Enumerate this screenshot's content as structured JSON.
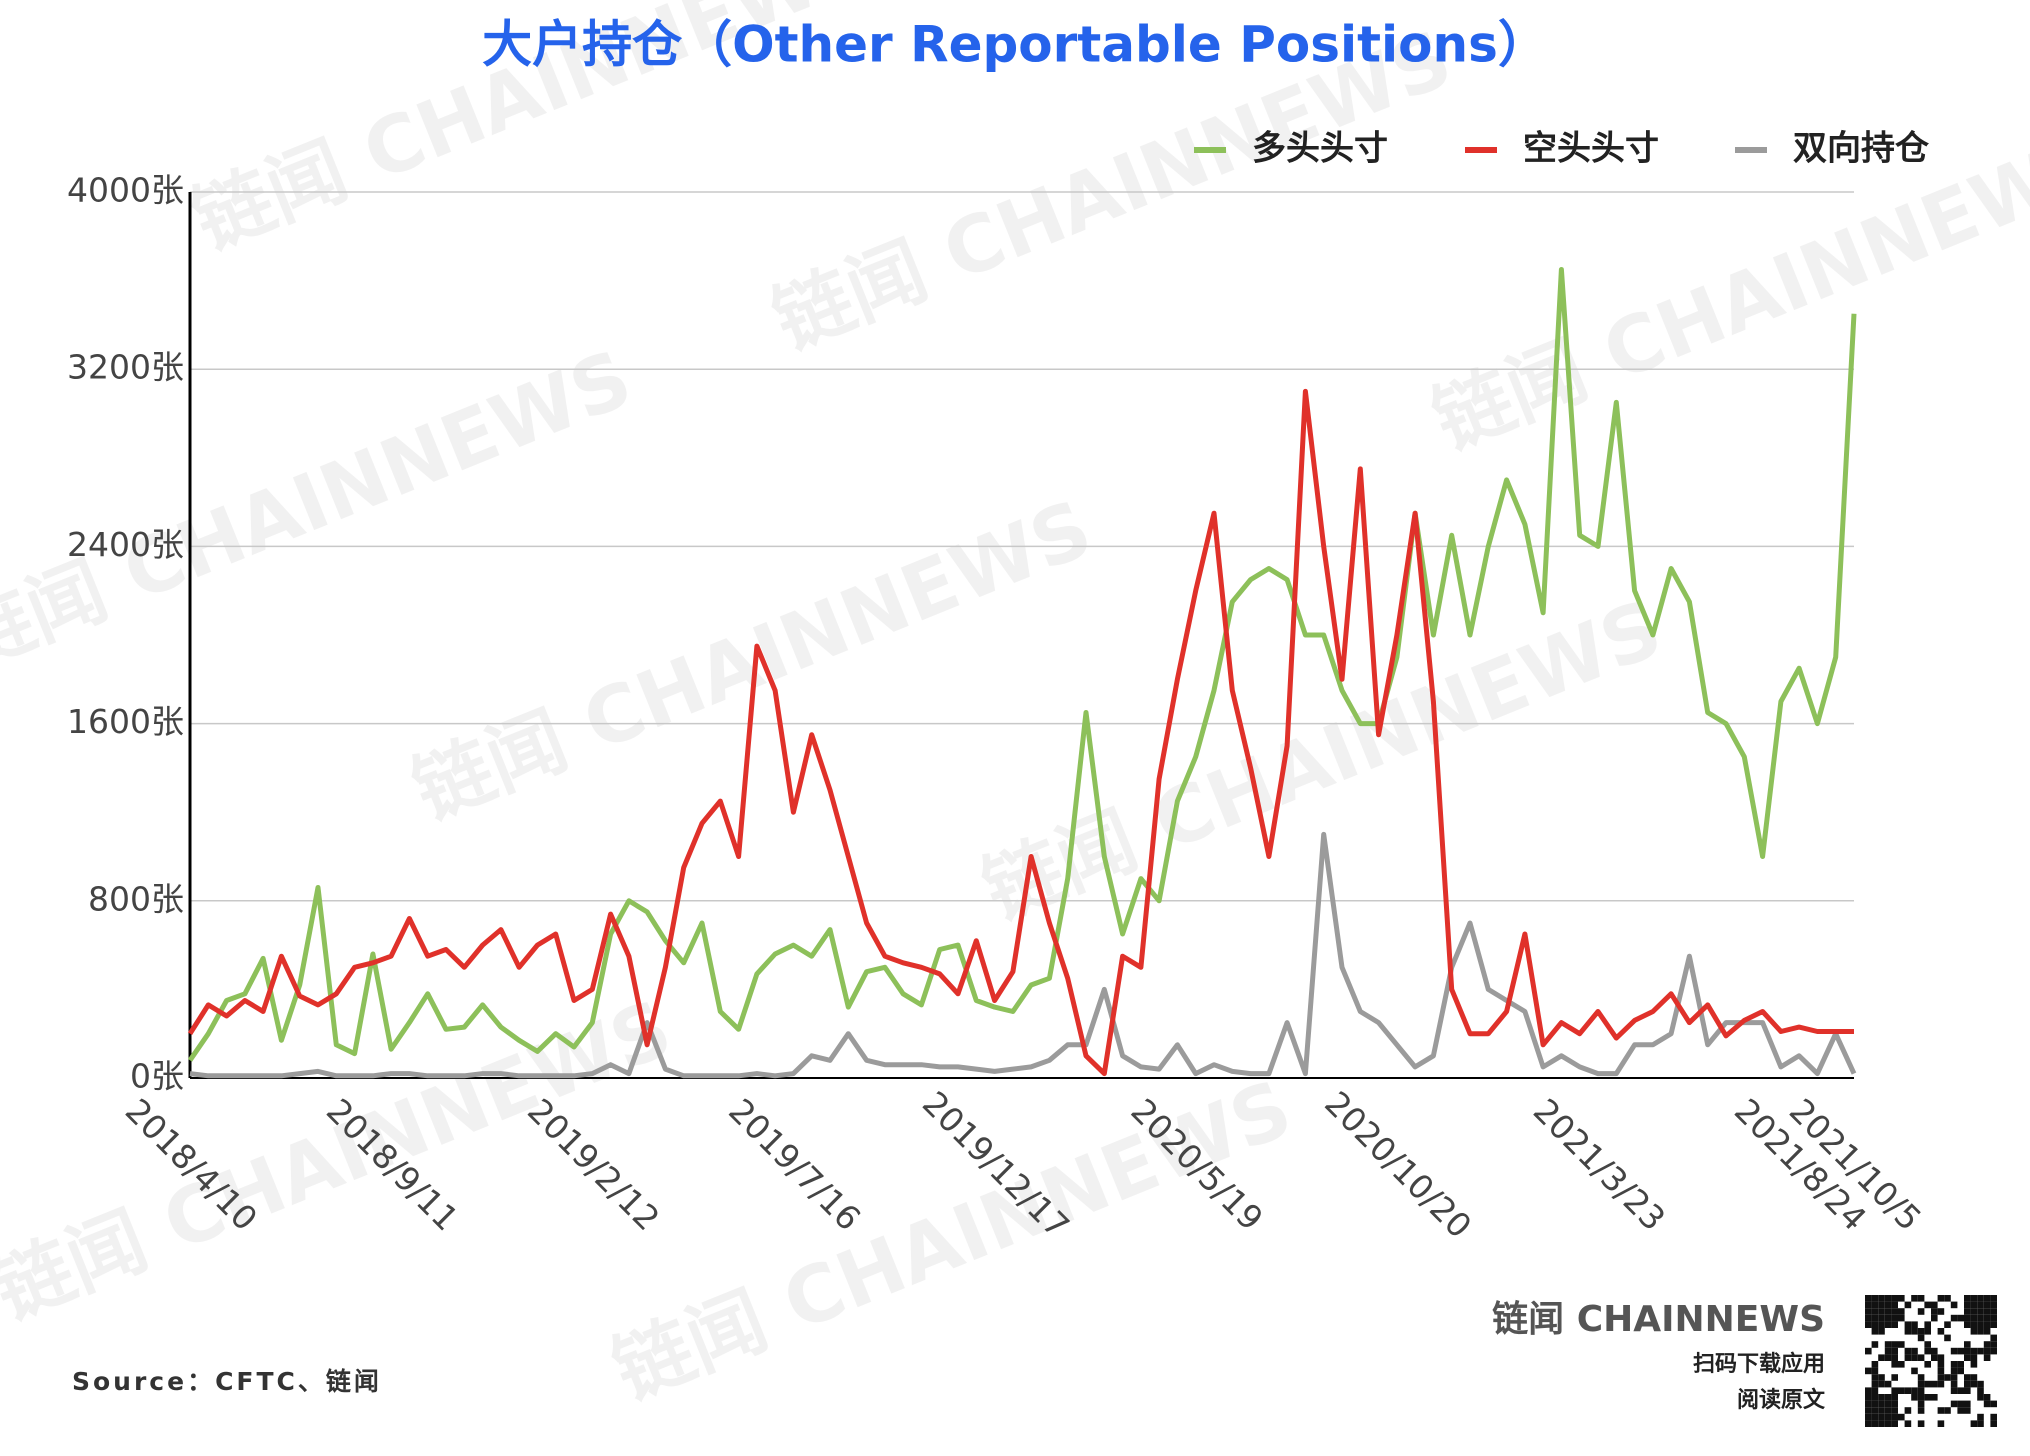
{
  "chart_data": {
    "type": "line",
    "title": "大户持仓（Other Reportable Positions）",
    "categories": [
      "2018/4/10",
      null,
      null,
      null,
      null,
      null,
      null,
      null,
      null,
      null,
      null,
      "2018/9/11",
      null,
      null,
      null,
      null,
      null,
      null,
      null,
      null,
      null,
      null,
      "2019/2/12",
      null,
      null,
      null,
      null,
      null,
      null,
      null,
      null,
      null,
      null,
      "2019/7/16",
      null,
      null,
      null,
      null,
      null,
      null,
      null,
      null,
      null,
      null,
      "2019/12/17",
      null,
      null,
      null,
      null,
      null,
      null,
      null,
      null,
      null,
      null,
      "2020/5/19",
      null,
      null,
      null,
      null,
      null,
      null,
      null,
      null,
      null,
      null,
      "2020/10/20",
      null,
      null,
      null,
      null,
      null,
      null,
      null,
      null,
      null,
      null,
      "2021/3/23",
      null,
      null,
      null,
      null,
      null,
      null,
      null,
      null,
      null,
      null,
      "2021/8/24",
      null,
      null,
      "2021/10/5"
    ],
    "series": [
      {
        "name": "多头头寸",
        "color": "#8dc05a",
        "values": [
          80,
          200,
          350,
          380,
          540,
          170,
          420,
          860,
          150,
          110,
          560,
          130,
          250,
          380,
          220,
          230,
          330,
          230,
          170,
          120,
          200,
          140,
          250,
          650,
          800,
          750,
          620,
          520,
          700,
          300,
          220,
          470,
          560,
          600,
          550,
          670,
          320,
          480,
          500,
          380,
          330,
          580,
          600,
          350,
          320,
          300,
          420,
          450,
          900,
          1650,
          1000,
          650,
          900,
          800,
          1250,
          1450,
          1750,
          2150,
          2250,
          2300,
          2250,
          2000,
          2000,
          1750,
          1600,
          1600,
          1900,
          2550,
          2000,
          2450,
          2000,
          2400,
          2700,
          2500,
          2100,
          3650,
          2450,
          2400,
          3050,
          2200,
          2000,
          2300,
          2150,
          1650,
          1600,
          1450,
          1000,
          1700,
          1850,
          1600,
          1900,
          3450
        ]
      },
      {
        "name": "空头头寸",
        "color": "#e0312a",
        "values": [
          200,
          330,
          280,
          350,
          300,
          550,
          370,
          330,
          380,
          500,
          520,
          550,
          720,
          550,
          580,
          500,
          600,
          670,
          500,
          600,
          650,
          350,
          400,
          740,
          550,
          150,
          500,
          950,
          1150,
          1250,
          1000,
          1950,
          1750,
          1200,
          1550,
          1300,
          1000,
          700,
          550,
          520,
          500,
          470,
          380,
          620,
          350,
          480,
          1000,
          700,
          450,
          100,
          20,
          550,
          500,
          1350,
          1800,
          2200,
          2550,
          1750,
          1400,
          1000,
          1500,
          3100,
          2400,
          1800,
          2750,
          1550,
          2000,
          2550,
          1700,
          400,
          200,
          200,
          300,
          650,
          150,
          250,
          200,
          300,
          180,
          260,
          300,
          380,
          250,
          330,
          190,
          260,
          300,
          210,
          230,
          210,
          210,
          210
        ]
      },
      {
        "name": "双向持仓",
        "color": "#9b9b9b",
        "values": [
          20,
          10,
          10,
          10,
          10,
          10,
          20,
          30,
          10,
          10,
          10,
          20,
          20,
          10,
          10,
          10,
          20,
          20,
          10,
          10,
          10,
          10,
          20,
          60,
          20,
          250,
          40,
          10,
          10,
          10,
          10,
          20,
          10,
          20,
          100,
          80,
          200,
          80,
          60,
          60,
          60,
          50,
          50,
          40,
          30,
          40,
          50,
          80,
          150,
          150,
          400,
          100,
          50,
          40,
          150,
          20,
          60,
          30,
          20,
          20,
          250,
          20,
          1100,
          500,
          300,
          250,
          150,
          50,
          100,
          500,
          700,
          400,
          350,
          300,
          50,
          100,
          50,
          20,
          20,
          150,
          150,
          200,
          550,
          150,
          250,
          250,
          250,
          50,
          100,
          20,
          200,
          20
        ]
      }
    ],
    "ylim": [
      0,
      4000
    ],
    "yticks": [
      {
        "value": 0,
        "label": "0张"
      },
      {
        "value": 800,
        "label": "800张"
      },
      {
        "value": 1600,
        "label": "1600张"
      },
      {
        "value": 2400,
        "label": "2400张"
      },
      {
        "value": 3200,
        "label": "3200张"
      },
      {
        "value": 4000,
        "label": "4000张"
      }
    ],
    "grid": true,
    "legend": "top-right",
    "source": "Source：CFTC、链闻",
    "watermark": "链闻 CHAINNEWS",
    "brand": "链闻 CHAINNEWS",
    "brand_line1": "扫码下载应用",
    "brand_line2": "阅读原文"
  }
}
